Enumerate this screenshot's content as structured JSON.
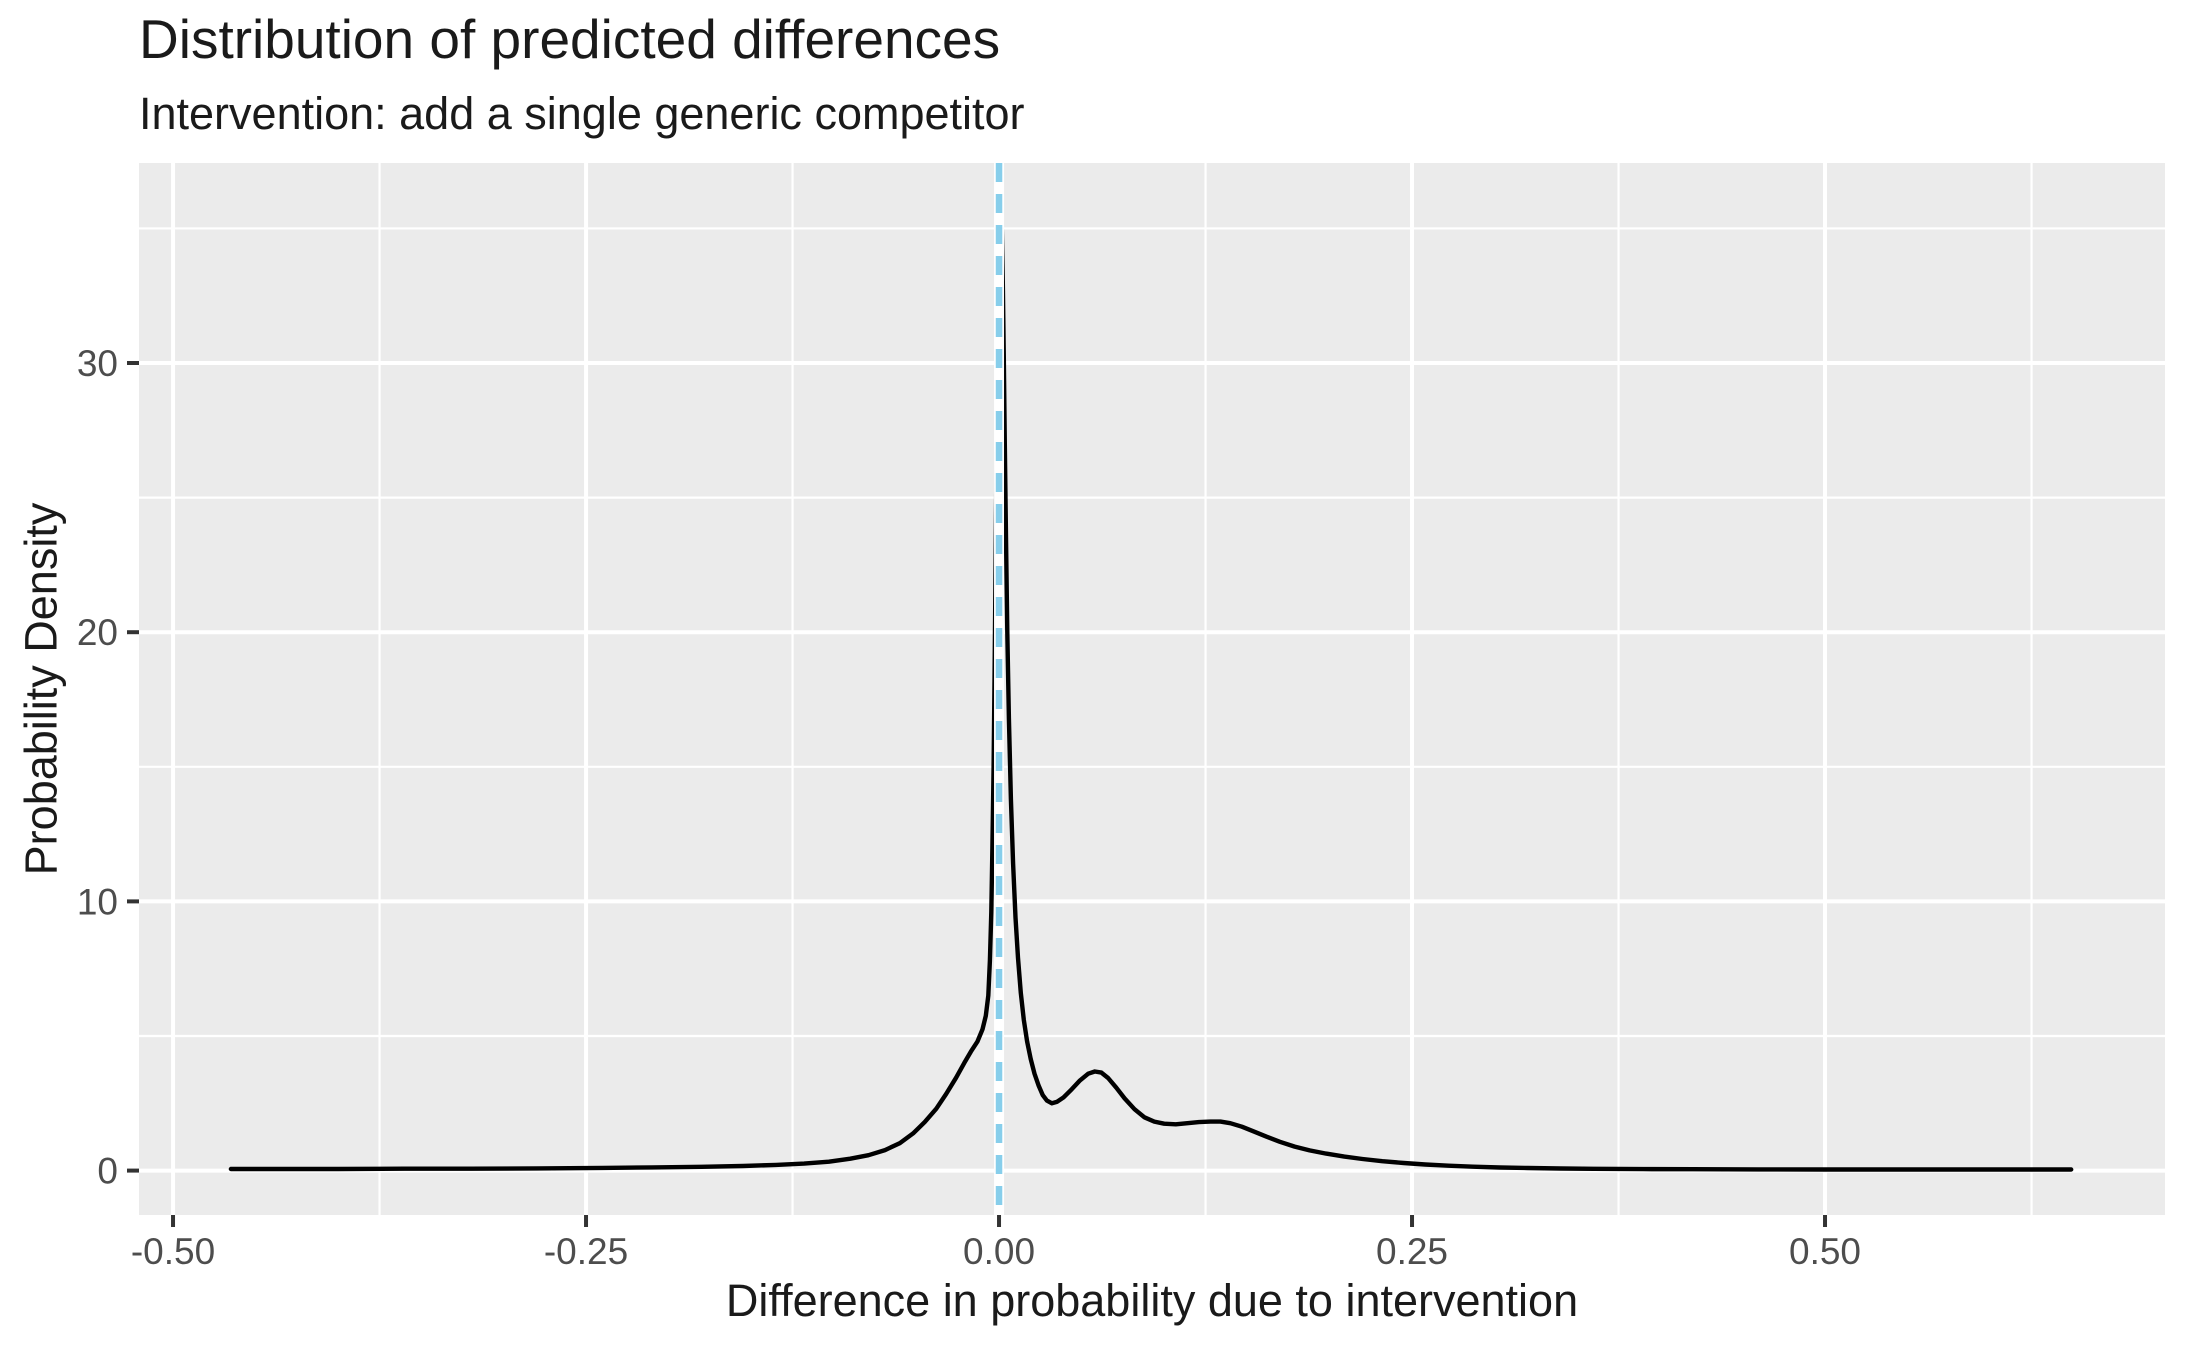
{
  "page": {
    "background": "#FFFFFF"
  },
  "chart_data": {
    "type": "line",
    "subtype": "density",
    "title": "Distribution of predicted differences",
    "subtitle": "Intervention: add a single generic competitor",
    "xlabel": "Difference in probability due to intervention",
    "ylabel": "Probability Density",
    "grid": "on",
    "legend": "none",
    "x_axis": {
      "range": [
        -0.5206,
        0.7058
      ],
      "ticks": [
        -0.5,
        -0.25,
        0,
        0.25,
        0.5
      ],
      "tick_labels": [
        "-0.50",
        "-0.25",
        "0.00",
        "0.25",
        "0.50"
      ],
      "minor_ticks": [
        -0.375,
        -0.125,
        0.125,
        0.375,
        0.625
      ]
    },
    "y_axis": {
      "range": [
        -1.65,
        37.43
      ],
      "ticks": [
        0,
        10,
        20,
        30
      ],
      "tick_labels": [
        "0",
        "10",
        "20",
        "30"
      ],
      "minor_ticks": [
        5,
        15,
        25,
        35
      ]
    },
    "reference_line": {
      "x": 0,
      "linetype": "dashed",
      "color": "#87CEEB",
      "underlay_color": "#FFFFFF",
      "width": 6.5,
      "underlay_width": 10,
      "dash": [
        19,
        12
      ]
    },
    "style": {
      "panel_background": "#EBEBEB",
      "grid_color": "#FFFFFF",
      "grid_major_width": 4,
      "grid_minor_width": 2.2,
      "tick_color": "#333333",
      "tick_length": 12,
      "tick_width": 4,
      "tick_label_color": "#4D4D4D",
      "text_color": "#1A1A1A"
    },
    "series": [
      {
        "name": "predicted-difference-density",
        "color": "#000000",
        "linewidth": 4.4,
        "peak": {
          "x": 0.001,
          "density": 35.8
        },
        "points": [
          [
            -0.465,
            0.06
          ],
          [
            -0.43,
            0.06
          ],
          [
            -0.4,
            0.06
          ],
          [
            -0.36,
            0.07
          ],
          [
            -0.32,
            0.07
          ],
          [
            -0.28,
            0.08
          ],
          [
            -0.24,
            0.1
          ],
          [
            -0.21,
            0.12
          ],
          [
            -0.18,
            0.14
          ],
          [
            -0.155,
            0.17
          ],
          [
            -0.135,
            0.21
          ],
          [
            -0.118,
            0.26
          ],
          [
            -0.103,
            0.33
          ],
          [
            -0.09,
            0.44
          ],
          [
            -0.079,
            0.57
          ],
          [
            -0.069,
            0.76
          ],
          [
            -0.06,
            1.02
          ],
          [
            -0.052,
            1.38
          ],
          [
            -0.045,
            1.8
          ],
          [
            -0.038,
            2.3
          ],
          [
            -0.032,
            2.85
          ],
          [
            -0.026,
            3.45
          ],
          [
            -0.021,
            4.0
          ],
          [
            -0.017,
            4.42
          ],
          [
            -0.013,
            4.8
          ],
          [
            -0.01,
            5.25
          ],
          [
            -0.008,
            5.75
          ],
          [
            -0.0065,
            6.5
          ],
          [
            -0.0055,
            7.8
          ],
          [
            -0.0047,
            9.6
          ],
          [
            -0.004,
            12.0
          ],
          [
            -0.0033,
            15.0
          ],
          [
            -0.0027,
            18.5
          ],
          [
            -0.0021,
            22.5
          ],
          [
            -0.0015,
            26.5
          ],
          [
            -0.0009,
            30.5
          ],
          [
            -0.0003,
            33.5
          ],
          [
            0.0004,
            35.2
          ],
          [
            0.001,
            35.8
          ],
          [
            0.0017,
            35.0
          ],
          [
            0.0023,
            33.0
          ],
          [
            0.0029,
            30.2
          ],
          [
            0.0035,
            27.0
          ],
          [
            0.0042,
            23.5
          ],
          [
            0.005,
            20.0
          ],
          [
            0.006,
            16.8
          ],
          [
            0.0072,
            13.8
          ],
          [
            0.0085,
            11.4
          ],
          [
            0.01,
            9.4
          ],
          [
            0.0115,
            7.9
          ],
          [
            0.0132,
            6.6
          ],
          [
            0.015,
            5.6
          ],
          [
            0.017,
            4.8
          ],
          [
            0.0192,
            4.15
          ],
          [
            0.0215,
            3.6
          ],
          [
            0.024,
            3.15
          ],
          [
            0.0265,
            2.8
          ],
          [
            0.029,
            2.6
          ],
          [
            0.032,
            2.5
          ],
          [
            0.035,
            2.55
          ],
          [
            0.039,
            2.72
          ],
          [
            0.044,
            3.02
          ],
          [
            0.049,
            3.35
          ],
          [
            0.054,
            3.6
          ],
          [
            0.058,
            3.68
          ],
          [
            0.062,
            3.64
          ],
          [
            0.066,
            3.44
          ],
          [
            0.071,
            3.08
          ],
          [
            0.076,
            2.68
          ],
          [
            0.082,
            2.28
          ],
          [
            0.088,
            1.98
          ],
          [
            0.094,
            1.82
          ],
          [
            0.1,
            1.74
          ],
          [
            0.107,
            1.72
          ],
          [
            0.114,
            1.76
          ],
          [
            0.121,
            1.8
          ],
          [
            0.128,
            1.82
          ],
          [
            0.134,
            1.82
          ],
          [
            0.14,
            1.76
          ],
          [
            0.147,
            1.63
          ],
          [
            0.154,
            1.46
          ],
          [
            0.162,
            1.26
          ],
          [
            0.17,
            1.07
          ],
          [
            0.179,
            0.89
          ],
          [
            0.188,
            0.75
          ],
          [
            0.198,
            0.63
          ],
          [
            0.209,
            0.52
          ],
          [
            0.22,
            0.43
          ],
          [
            0.232,
            0.35
          ],
          [
            0.245,
            0.28
          ],
          [
            0.258,
            0.225
          ],
          [
            0.272,
            0.18
          ],
          [
            0.287,
            0.145
          ],
          [
            0.303,
            0.115
          ],
          [
            0.32,
            0.095
          ],
          [
            0.34,
            0.078
          ],
          [
            0.36,
            0.066
          ],
          [
            0.39,
            0.056
          ],
          [
            0.42,
            0.05
          ],
          [
            0.46,
            0.045
          ],
          [
            0.5,
            0.042
          ],
          [
            0.55,
            0.04
          ],
          [
            0.6,
            0.04
          ],
          [
            0.649,
            0.04
          ]
        ]
      }
    ]
  }
}
